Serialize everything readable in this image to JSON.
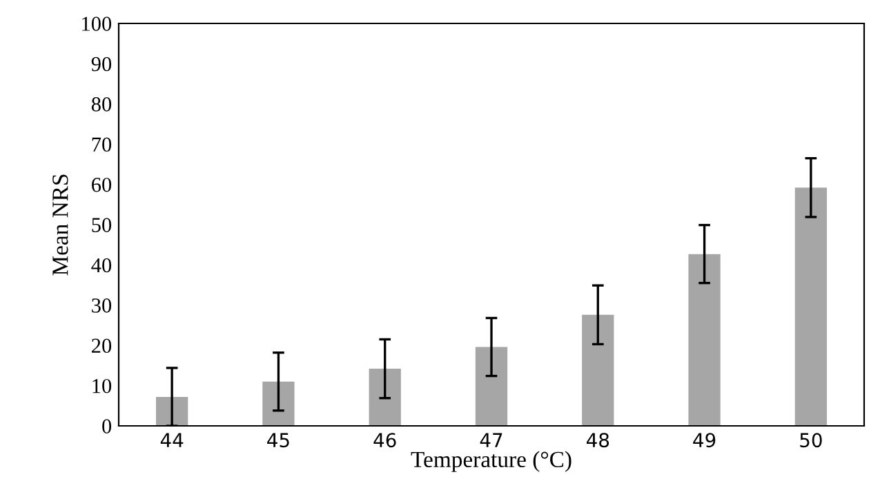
{
  "chart_data": {
    "type": "bar",
    "xlabel": "Temperature (°C)",
    "ylabel": "Mean NRS",
    "categories": [
      "44",
      "45",
      "46",
      "47",
      "48",
      "49",
      "50"
    ],
    "values": [
      7.2,
      11,
      14.2,
      19.6,
      27.6,
      42.7,
      59.2
    ],
    "errors": [
      7.2,
      7.2,
      7.3,
      7.2,
      7.3,
      7.2,
      7.3
    ],
    "color": "#a6a6a6",
    "ylim": [
      0,
      100
    ],
    "yticks": [
      0,
      10,
      20,
      30,
      40,
      50,
      60,
      70,
      80,
      90,
      100
    ],
    "grid": false
  }
}
